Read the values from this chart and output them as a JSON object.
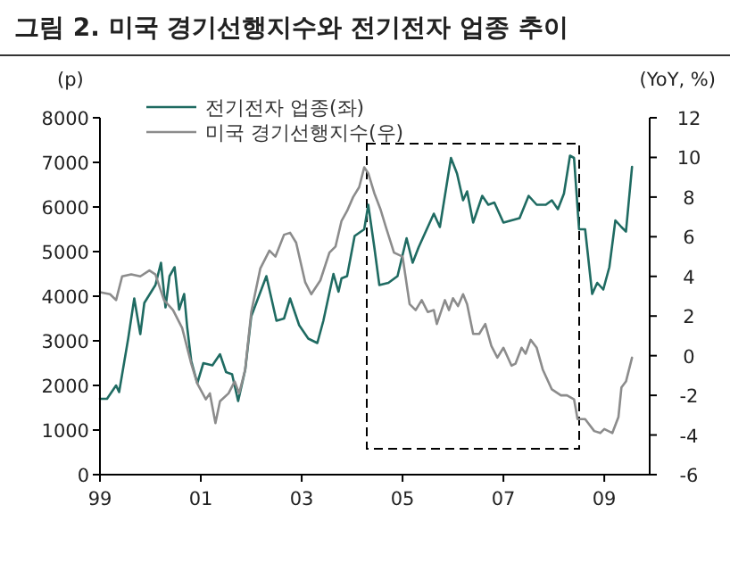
{
  "chart_data": {
    "type": "line",
    "title": "그림 2.  미국 경기선행지수와 전기전자 업종 추이",
    "ylabel": "(p)",
    "y2label": "(YoY, %)",
    "xlim": [
      1999,
      2009.9
    ],
    "xticks": [
      {
        "value": 1999,
        "label": "99"
      },
      {
        "value": 2001,
        "label": "01"
      },
      {
        "value": 2003,
        "label": "03"
      },
      {
        "value": 2005,
        "label": "05"
      },
      {
        "value": 2007,
        "label": "07"
      },
      {
        "value": 2009,
        "label": "09"
      }
    ],
    "ylim": [
      0,
      8000
    ],
    "yticks": [
      0,
      1000,
      2000,
      3000,
      4000,
      5000,
      6000,
      7000,
      8000
    ],
    "y2lim": [
      -6,
      12
    ],
    "y2ticks": [
      -6,
      -4,
      -2,
      0,
      2,
      4,
      6,
      8,
      10,
      12
    ],
    "legend": "top left",
    "grid": false,
    "marker": "none",
    "line_style": "solid",
    "series": [
      {
        "name": "전기전자 업종(좌)",
        "color": "#1f6b62",
        "x": [
          1999.0,
          1999.14,
          1999.32,
          1999.38,
          1999.56,
          1999.68,
          1999.8,
          1999.88,
          2000.1,
          2000.21,
          2000.3,
          2000.38,
          2000.48,
          2000.57,
          2000.67,
          2000.73,
          2000.81,
          2000.93,
          2001.05,
          2001.23,
          2001.38,
          2001.5,
          2001.62,
          2001.74,
          2001.88,
          2002.0,
          2002.3,
          2002.5,
          2002.65,
          2002.77,
          2002.95,
          2003.13,
          2003.31,
          2003.43,
          2003.63,
          2003.73,
          2003.79,
          2003.9,
          2004.05,
          2004.24,
          2004.32,
          2004.44,
          2004.54,
          2004.72,
          2004.9,
          2005.08,
          2005.2,
          2005.32,
          2005.5,
          2005.62,
          2005.74,
          2005.96,
          2006.08,
          2006.2,
          2006.28,
          2006.4,
          2006.58,
          2006.7,
          2006.82,
          2007.0,
          2007.16,
          2007.32,
          2007.5,
          2007.66,
          2007.84,
          2007.96,
          2008.08,
          2008.2,
          2008.32,
          2008.4,
          2008.5,
          2008.62,
          2008.76,
          2008.86,
          2008.98,
          2009.1,
          2009.22,
          2009.34,
          2009.43,
          2009.55
        ],
        "values": [
          1700,
          1700,
          2000,
          1850,
          3050,
          3950,
          3150,
          3850,
          4250,
          4750,
          3750,
          4450,
          4650,
          3700,
          4050,
          3300,
          2550,
          2050,
          2500,
          2450,
          2700,
          2300,
          2250,
          1650,
          2350,
          3550,
          4450,
          3450,
          3500,
          3950,
          3350,
          3050,
          2950,
          3450,
          4500,
          4100,
          4400,
          4450,
          5350,
          5500,
          6050,
          5100,
          4250,
          4300,
          4450,
          5300,
          4750,
          5100,
          5550,
          5850,
          5550,
          7100,
          6750,
          6150,
          6350,
          5650,
          6250,
          6050,
          6100,
          5650,
          5700,
          5750,
          6250,
          6050,
          6050,
          6150,
          5950,
          6300,
          7150,
          7100,
          5500,
          5500,
          4050,
          4300,
          4150,
          4650,
          5700,
          5550,
          5450,
          6900
        ]
      },
      {
        "name": "미국 경기선행지수(우)",
        "color": "#8c8c8c",
        "axis": "y2",
        "x": [
          1999.0,
          1999.2,
          1999.32,
          1999.44,
          1999.62,
          1999.8,
          1999.98,
          2000.1,
          2000.27,
          2000.45,
          2000.63,
          2000.81,
          2000.93,
          2001.1,
          2001.18,
          2001.29,
          2001.38,
          2001.55,
          2001.67,
          2001.76,
          2001.88,
          2002.0,
          2002.18,
          2002.36,
          2002.48,
          2002.65,
          2002.77,
          2002.89,
          2003.07,
          2003.19,
          2003.37,
          2003.55,
          2003.67,
          2003.79,
          2003.9,
          2004.02,
          2004.14,
          2004.24,
          2004.32,
          2004.44,
          2004.56,
          2004.68,
          2004.83,
          2005.0,
          2005.14,
          2005.26,
          2005.38,
          2005.5,
          2005.62,
          2005.68,
          2005.84,
          2005.92,
          2006.0,
          2006.1,
          2006.2,
          2006.28,
          2006.4,
          2006.52,
          2006.64,
          2006.76,
          2006.88,
          2007.0,
          2007.16,
          2007.24,
          2007.36,
          2007.44,
          2007.54,
          2007.66,
          2007.78,
          2007.96,
          2008.14,
          2008.26,
          2008.4,
          2008.47,
          2008.62,
          2008.8,
          2008.92,
          2009.0,
          2009.16,
          2009.28,
          2009.34,
          2009.43,
          2009.55
        ],
        "values": [
          3.2,
          3.1,
          2.8,
          4,
          4.1,
          4,
          4.3,
          4.1,
          2.8,
          2.3,
          1.4,
          -0.4,
          -1.4,
          -2.2,
          -1.9,
          -3.4,
          -2.3,
          -1.9,
          -1.3,
          -1.9,
          -0.7,
          2.2,
          4.4,
          5.3,
          5,
          6.1,
          6.2,
          5.7,
          3.7,
          3.1,
          3.8,
          5.2,
          5.5,
          6.8,
          7.3,
          8,
          8.5,
          9.5,
          9.2,
          8.2,
          7.4,
          6.4,
          5.2,
          5,
          2.6,
          2.3,
          2.8,
          2.2,
          2.3,
          1.6,
          2.8,
          2.3,
          2.9,
          2.5,
          3.1,
          2.6,
          1.1,
          1.1,
          1.6,
          0.5,
          -0.1,
          0.4,
          -0.5,
          -0.4,
          0.4,
          0.1,
          0.8,
          0.4,
          -0.7,
          -1.7,
          -2,
          -2,
          -2.2,
          -3.2,
          -3.2,
          -3.8,
          -3.9,
          -3.7,
          -3.9,
          -3.1,
          -1.6,
          -1.3,
          -0.1
        ]
      }
    ]
  }
}
